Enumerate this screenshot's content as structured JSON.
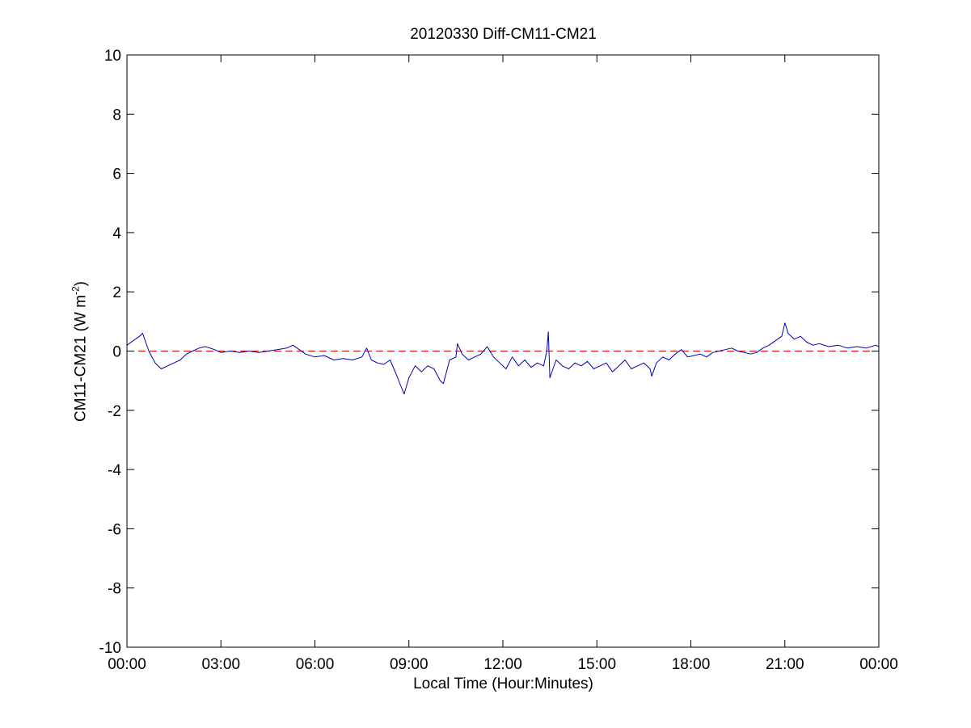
{
  "chart_data": {
    "type": "line",
    "title": "20120330 Diff-CM11-CM21",
    "xlabel": "Local Time (Hour:Minutes)",
    "ylabel": {
      "prefix": "CM11-CM21 (W m",
      "sup": "-2",
      "suffix": ")"
    },
    "xlim": [
      0,
      24
    ],
    "ylim": [
      -10,
      10
    ],
    "x_unit": "hours",
    "x_ticks": [
      0,
      3,
      6,
      9,
      12,
      15,
      18,
      21,
      24
    ],
    "x_tick_labels": [
      "00:00",
      "03:00",
      "06:00",
      "09:00",
      "12:00",
      "15:00",
      "18:00",
      "21:00",
      "00:00"
    ],
    "y_ticks": [
      -10,
      -8,
      -6,
      -4,
      -2,
      0,
      2,
      4,
      6,
      8,
      10
    ],
    "y_tick_labels": [
      "-10",
      "-8",
      "-6",
      "-4",
      "-2",
      "0",
      "2",
      "4",
      "6",
      "8",
      "10"
    ],
    "grid": false,
    "colors": {
      "series": "#0000b4",
      "reference": "#e00000",
      "axes": "#000000"
    },
    "reference_line": {
      "y": 0,
      "style": "dashed"
    },
    "series": [
      {
        "x": [
          0.0,
          0.2,
          0.4,
          0.5,
          0.55,
          0.7,
          0.9,
          1.1,
          1.3,
          1.5,
          1.7,
          1.9,
          2.1,
          2.3,
          2.5,
          2.8,
          3.0,
          3.3,
          3.6,
          3.9,
          4.2,
          4.5,
          4.8,
          5.1,
          5.3,
          5.5,
          5.7,
          6.0,
          6.3,
          6.6,
          6.9,
          7.2,
          7.5,
          7.65,
          7.8,
          8.0,
          8.2,
          8.4,
          8.6,
          8.75,
          8.85,
          9.0,
          9.2,
          9.4,
          9.6,
          9.8,
          10.0,
          10.1,
          10.3,
          10.5,
          10.55,
          10.7,
          10.9,
          11.1,
          11.3,
          11.5,
          11.7,
          11.9,
          12.1,
          12.3,
          12.5,
          12.7,
          12.9,
          13.1,
          13.3,
          13.4,
          13.45,
          13.5,
          13.7,
          13.9,
          14.1,
          14.3,
          14.5,
          14.7,
          14.9,
          15.1,
          15.3,
          15.5,
          15.7,
          15.9,
          16.1,
          16.3,
          16.5,
          16.7,
          16.75,
          16.9,
          17.1,
          17.3,
          17.5,
          17.7,
          17.9,
          18.1,
          18.3,
          18.5,
          18.7,
          18.9,
          19.1,
          19.3,
          19.5,
          19.7,
          19.9,
          20.1,
          20.3,
          20.5,
          20.7,
          20.9,
          21.0,
          21.05,
          21.1,
          21.3,
          21.5,
          21.7,
          21.9,
          22.1,
          22.4,
          22.7,
          23.0,
          23.3,
          23.6,
          23.9,
          24.0
        ],
        "y": [
          0.2,
          0.35,
          0.5,
          0.6,
          0.45,
          0.0,
          -0.4,
          -0.6,
          -0.5,
          -0.4,
          -0.3,
          -0.1,
          0.0,
          0.1,
          0.15,
          0.05,
          -0.05,
          0.0,
          -0.05,
          0.0,
          -0.05,
          0.0,
          0.05,
          0.1,
          0.2,
          0.05,
          -0.1,
          -0.2,
          -0.15,
          -0.3,
          -0.25,
          -0.3,
          -0.2,
          0.1,
          -0.3,
          -0.4,
          -0.45,
          -0.3,
          -0.8,
          -1.2,
          -1.45,
          -0.9,
          -0.5,
          -0.7,
          -0.5,
          -0.6,
          -1.0,
          -1.1,
          -0.3,
          -0.2,
          0.25,
          -0.1,
          -0.3,
          -0.2,
          -0.1,
          0.15,
          -0.2,
          -0.4,
          -0.6,
          -0.2,
          -0.5,
          -0.3,
          -0.55,
          -0.4,
          -0.5,
          0.0,
          0.65,
          -0.9,
          -0.3,
          -0.5,
          -0.6,
          -0.4,
          -0.5,
          -0.35,
          -0.6,
          -0.5,
          -0.4,
          -0.7,
          -0.5,
          -0.3,
          -0.6,
          -0.5,
          -0.4,
          -0.6,
          -0.85,
          -0.4,
          -0.2,
          -0.3,
          -0.1,
          0.05,
          -0.2,
          -0.15,
          -0.1,
          -0.2,
          -0.05,
          0.0,
          0.05,
          0.1,
          0.0,
          -0.05,
          -0.1,
          -0.05,
          0.1,
          0.2,
          0.35,
          0.5,
          0.95,
          0.8,
          0.6,
          0.4,
          0.5,
          0.3,
          0.2,
          0.25,
          0.15,
          0.2,
          0.1,
          0.15,
          0.1,
          0.2,
          0.15
        ]
      }
    ]
  }
}
